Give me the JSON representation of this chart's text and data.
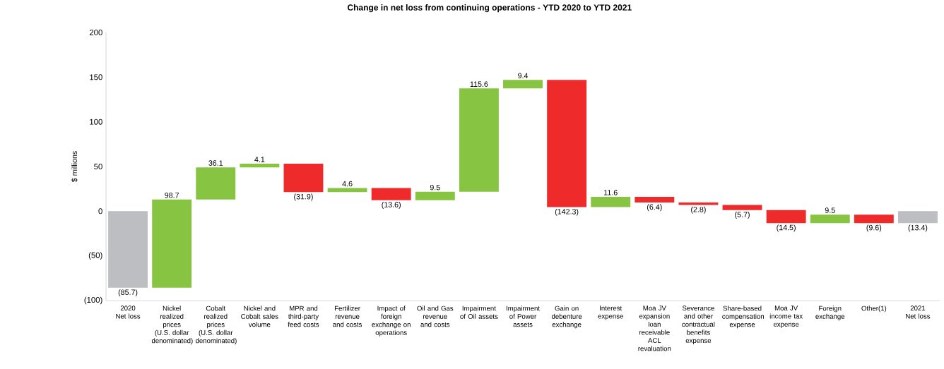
{
  "chart_data": {
    "type": "bar",
    "title": "Change in net loss from continuing operations - YTD 2020 to YTD 2021",
    "ylabel": "$ millions",
    "categories": [
      "2020 Net loss",
      "Nickel realized prices (U.S. dollar denominated)",
      "Cobalt realized prices (U.S. dollar denominated)",
      "Nickel and Cobalt sales volume",
      "MPR and third-party feed costs",
      "Fertilizer revenue and costs",
      "Impact of foreign exchange on operations",
      "Oil and Gas revenue and costs",
      "Impairment of Oil assets",
      "Impairment of Power assets",
      "Gain on debenture exchange",
      "Interest expense",
      "Moa JV expansion loan receivable ACL revaluation",
      "Severance and other contractual benefits expense",
      "Share-based compensation expense",
      "Moa JV income tax expense",
      "Foreign exchange",
      "Other(1)",
      "2021 Net loss"
    ],
    "values": [
      -85.7,
      98.7,
      36.1,
      4.1,
      -31.9,
      4.6,
      -13.6,
      9.5,
      115.6,
      9.4,
      -142.3,
      11.6,
      -6.4,
      -2.8,
      -5.7,
      -14.5,
      9.5,
      -9.6,
      -13.4
    ],
    "base": [
      0,
      -85.7,
      13.0,
      49.1,
      53.2,
      21.3,
      25.9,
      12.3,
      21.8,
      137.4,
      146.8,
      4.5,
      16.1,
      9.7,
      6.9,
      1.2,
      -13.3,
      -3.8,
      0
    ],
    "value_labels": [
      "(85.7)",
      "98.7",
      "36.1",
      "4.1",
      "(31.9)",
      "4.6",
      "(13.6)",
      "9.5",
      "115.6",
      "9.4",
      "(142.3)",
      "11.6",
      "(6.4)",
      "(2.8)",
      "(5.7)",
      "(14.5)",
      "9.5",
      "(9.6)",
      "(13.4)"
    ],
    "colors": [
      "#bdbec2",
      "#86c441",
      "#86c441",
      "#86c441",
      "#ee2a2a",
      "#86c441",
      "#ee2a2a",
      "#86c441",
      "#86c441",
      "#86c441",
      "#ee2a2a",
      "#86c441",
      "#ee2a2a",
      "#ee2a2a",
      "#ee2a2a",
      "#ee2a2a",
      "#86c441",
      "#ee2a2a",
      "#bdbec2"
    ],
    "ylim": [
      -100,
      200
    ],
    "yticks": [
      {
        "value": -100,
        "label": "(100)"
      },
      {
        "value": -50,
        "label": "(50)"
      },
      0,
      50,
      100,
      150,
      200
    ],
    "tick_labels": "xy"
  }
}
